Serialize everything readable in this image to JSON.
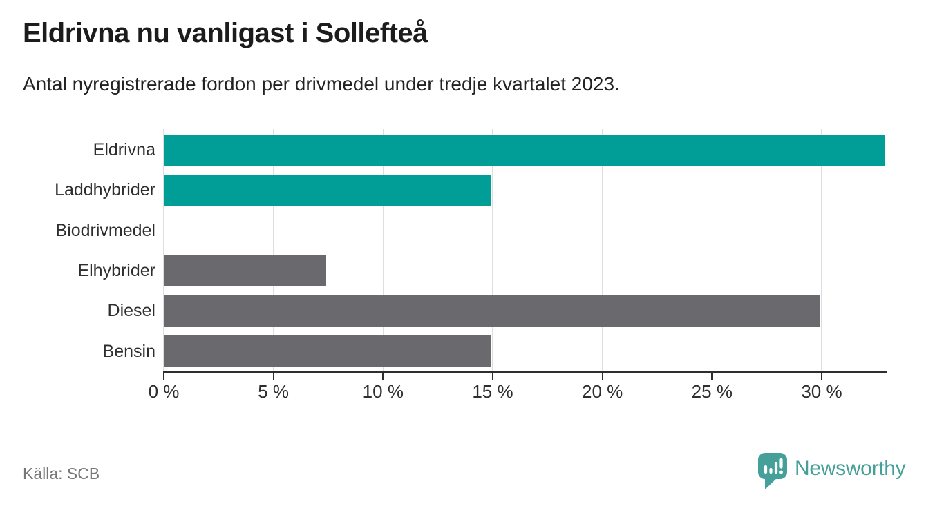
{
  "header": {
    "title": "Eldrivna nu vanligast i Sollefteå",
    "subtitle": "Antal nyregistrerade fordon per drivmedel under tredje kvartalet 2023."
  },
  "chart_data": {
    "type": "bar",
    "orientation": "horizontal",
    "title": "Eldrivna nu vanligast i Sollefteå",
    "subtitle": "Antal nyregistrerade fordon per drivmedel under tredje kvartalet 2023.",
    "categories": [
      "Eldrivna",
      "Laddhybrider",
      "Biodrivmedel",
      "Elhybrider",
      "Diesel",
      "Bensin"
    ],
    "values": [
      32.9,
      14.9,
      0,
      7.4,
      29.9,
      14.9
    ],
    "value_unit": "%",
    "bar_colors": [
      "#009e96",
      "#009e96",
      "#69696e",
      "#69696e",
      "#69696e",
      "#69696e"
    ],
    "xlim": [
      0,
      32.9
    ],
    "xticks": [
      0,
      5,
      10,
      15,
      20,
      25,
      30
    ],
    "xtick_labels": [
      "0 %",
      "5 %",
      "10 %",
      "15 %",
      "20 %",
      "25 %",
      "30 %"
    ],
    "grid": "vertical",
    "legend": false
  },
  "footer": {
    "source": "Källa: SCB",
    "brand_name": "Newsworthy"
  },
  "colors": {
    "accent_teal": "#009e96",
    "neutral_gray": "#69696e",
    "brand_teal": "#45a099",
    "axis": "#2e2e2e",
    "gridline": "#dedede",
    "muted_text": "#767676"
  }
}
